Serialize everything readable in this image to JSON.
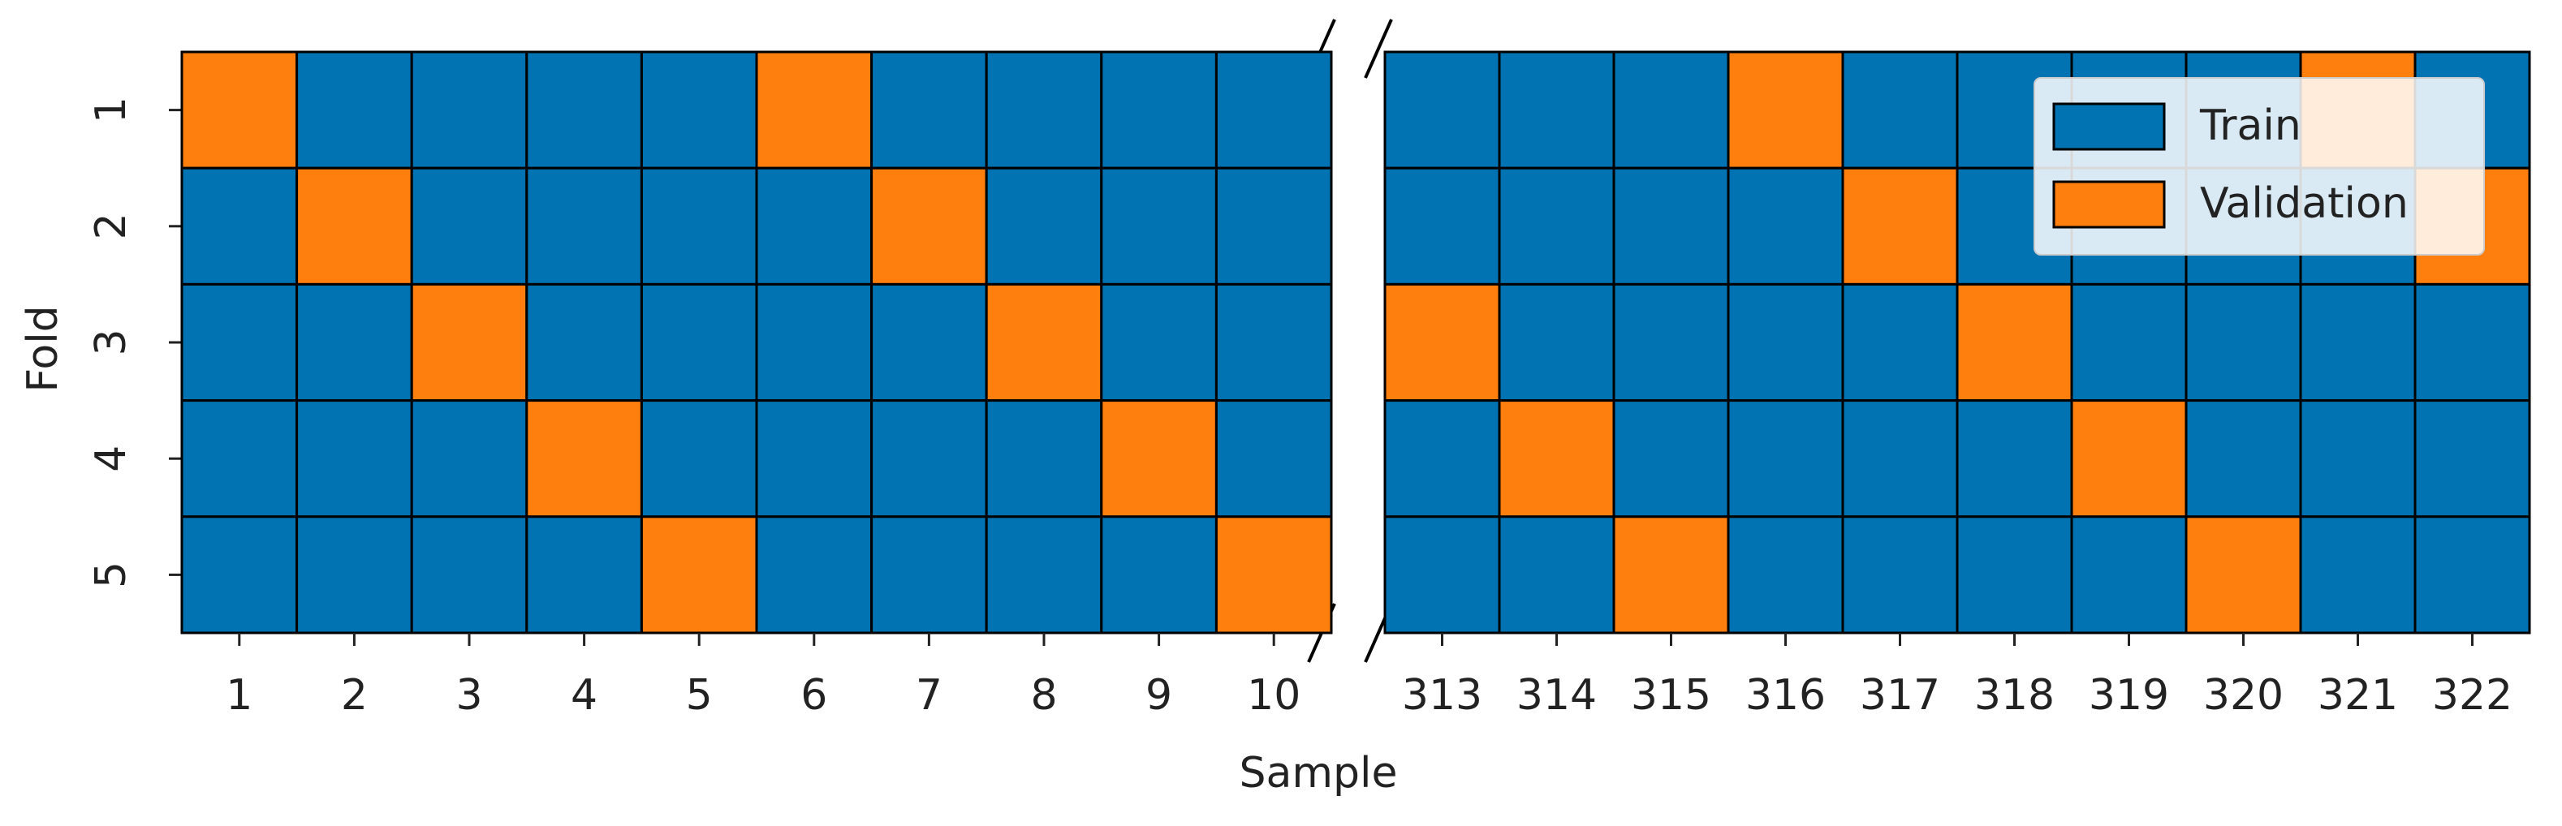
{
  "chart_data": {
    "type": "heatmap",
    "xlabel": "Sample",
    "ylabel": "Fold",
    "rows": [
      "1",
      "2",
      "3",
      "4",
      "5"
    ],
    "classes": [
      {
        "name": "Train",
        "color": "#0173b2"
      },
      {
        "name": "Validation",
        "color": "#ff7f0e"
      }
    ],
    "legend_loc": "upper right",
    "panels": [
      {
        "x": [
          1,
          2,
          3,
          4,
          5,
          6,
          7,
          8,
          9,
          10
        ],
        "values": [
          [
            1,
            0,
            0,
            0,
            0,
            1,
            0,
            0,
            0,
            0
          ],
          [
            0,
            1,
            0,
            0,
            0,
            0,
            1,
            0,
            0,
            0
          ],
          [
            0,
            0,
            1,
            0,
            0,
            0,
            0,
            1,
            0,
            0
          ],
          [
            0,
            0,
            0,
            1,
            0,
            0,
            0,
            0,
            1,
            0
          ],
          [
            0,
            0,
            0,
            0,
            1,
            0,
            0,
            0,
            0,
            1
          ]
        ]
      },
      {
        "x": [
          313,
          314,
          315,
          316,
          317,
          318,
          319,
          320,
          321,
          322
        ],
        "values": [
          [
            0,
            0,
            0,
            1,
            0,
            0,
            0,
            0,
            1,
            0
          ],
          [
            0,
            0,
            0,
            0,
            1,
            0,
            0,
            0,
            0,
            1
          ],
          [
            1,
            0,
            0,
            0,
            0,
            1,
            0,
            0,
            0,
            0
          ],
          [
            0,
            1,
            0,
            0,
            0,
            0,
            1,
            0,
            0,
            0
          ],
          [
            0,
            0,
            1,
            0,
            0,
            0,
            0,
            1,
            0,
            0
          ]
        ]
      }
    ]
  }
}
